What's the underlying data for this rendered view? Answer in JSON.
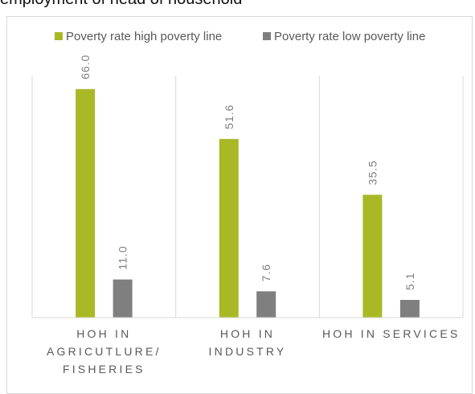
{
  "heading": "employment of head of household",
  "colors": {
    "high": "#a9b926",
    "low": "#7f7f7f",
    "grid": "#d9d9d9"
  },
  "chart_data": {
    "type": "bar",
    "title": "employment of head of household",
    "categories": [
      [
        "HOH IN",
        "AGRICUTLURE/",
        "FISHERIES"
      ],
      [
        "HOH IN",
        "INDUSTRY"
      ],
      [
        "HOH IN SERVICES"
      ]
    ],
    "series": [
      {
        "name": "Poverty rate high poverty line",
        "values": [
          66.0,
          51.6,
          35.5
        ],
        "labels": [
          "66.0",
          "51.6",
          "35.5"
        ]
      },
      {
        "name": "Poverty rate low poverty line",
        "values": [
          11.0,
          7.6,
          5.1
        ],
        "labels": [
          "11.0",
          "7.6",
          "5.1"
        ]
      }
    ],
    "ylim": [
      0,
      72
    ],
    "legend": "top",
    "grid": "vertical category separators"
  }
}
